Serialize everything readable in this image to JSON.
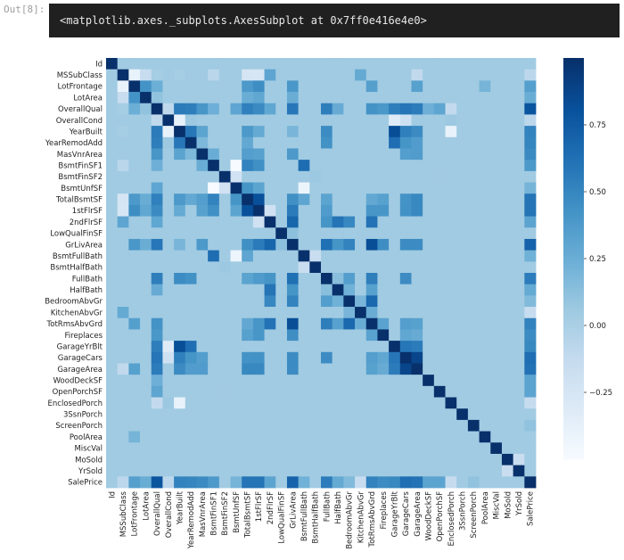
{
  "cell_prompt": "Out[8]:",
  "output_text": "<matplotlib.axes._subplots.AxesSubplot at 0x7ff0e416e4e0>",
  "chart_data": {
    "type": "heatmap",
    "title": "",
    "colormap": "Blues",
    "vmin": -0.5,
    "vmax": 1.0,
    "colorbar_ticks": [
      0.75,
      0.5,
      0.25,
      0.0,
      -0.25
    ],
    "colorbar_tick_labels": [
      "0.75",
      "0.50",
      "0.25",
      "0.00",
      "−0.25"
    ],
    "labels": [
      "Id",
      "MSSubClass",
      "LotFrontage",
      "LotArea",
      "OverallQual",
      "OverallCond",
      "YearBuilt",
      "YearRemodAdd",
      "MasVnrArea",
      "BsmtFinSF1",
      "BsmtFinSF2",
      "BsmtUnfSF",
      "TotalBsmtSF",
      "1stFlrSF",
      "2ndFlrSF",
      "LowQualFinSF",
      "GrLivArea",
      "BsmtFullBath",
      "BsmtHalfBath",
      "FullBath",
      "HalfBath",
      "BedroomAbvGr",
      "KitchenAbvGr",
      "TotRmsAbvGrd",
      "Fireplaces",
      "GarageYrBlt",
      "GarageCars",
      "GarageArea",
      "WoodDeckSF",
      "OpenPorchSF",
      "EnclosedPorch",
      "3SsnPorch",
      "ScreenPorch",
      "PoolArea",
      "MiscVal",
      "MoSold",
      "YrSold",
      "SalePrice"
    ],
    "correlations": [
      [
        "MSSubClass",
        "LotFrontage",
        -0.39
      ],
      [
        "MSSubClass",
        "LotArea",
        -0.14
      ],
      [
        "MSSubClass",
        "OverallQual",
        0.03
      ],
      [
        "MSSubClass",
        "YearBuilt",
        0.03
      ],
      [
        "MSSubClass",
        "BsmtFinSF1",
        -0.07
      ],
      [
        "MSSubClass",
        "TotalBsmtSF",
        -0.24
      ],
      [
        "MSSubClass",
        "1stFlrSF",
        -0.25
      ],
      [
        "MSSubClass",
        "2ndFlrSF",
        0.31
      ],
      [
        "MSSubClass",
        "KitchenAbvGr",
        0.28
      ],
      [
        "MSSubClass",
        "GarageArea",
        -0.1
      ],
      [
        "MSSubClass",
        "SalePrice",
        -0.08
      ],
      [
        "LotFrontage",
        "LotArea",
        0.43
      ],
      [
        "LotFrontage",
        "OverallQual",
        0.25
      ],
      [
        "LotFrontage",
        "TotalBsmtSF",
        0.39
      ],
      [
        "LotFrontage",
        "1stFlrSF",
        0.46
      ],
      [
        "LotFrontage",
        "GrLivArea",
        0.4
      ],
      [
        "LotFrontage",
        "TotRmsAbvGrd",
        0.35
      ],
      [
        "LotFrontage",
        "GarageArea",
        0.34
      ],
      [
        "LotFrontage",
        "PoolArea",
        0.21
      ],
      [
        "LotFrontage",
        "SalePrice",
        0.35
      ],
      [
        "LotArea",
        "OverallQual",
        0.11
      ],
      [
        "LotArea",
        "TotalBsmtSF",
        0.26
      ],
      [
        "LotArea",
        "1stFlrSF",
        0.3
      ],
      [
        "LotArea",
        "GrLivArea",
        0.26
      ],
      [
        "LotArea",
        "SalePrice",
        0.26
      ],
      [
        "OverallQual",
        "OverallCond",
        -0.09
      ],
      [
        "OverallQual",
        "YearBuilt",
        0.57
      ],
      [
        "OverallQual",
        "YearRemodAdd",
        0.55
      ],
      [
        "OverallQual",
        "MasVnrArea",
        0.41
      ],
      [
        "OverallQual",
        "BsmtFinSF1",
        0.24
      ],
      [
        "OverallQual",
        "BsmtUnfSF",
        0.31
      ],
      [
        "OverallQual",
        "TotalBsmtSF",
        0.54
      ],
      [
        "OverallQual",
        "1stFlrSF",
        0.48
      ],
      [
        "OverallQual",
        "2ndFlrSF",
        0.3
      ],
      [
        "OverallQual",
        "GrLivArea",
        0.59
      ],
      [
        "OverallQual",
        "FullBath",
        0.55
      ],
      [
        "OverallQual",
        "HalfBath",
        0.27
      ],
      [
        "OverallQual",
        "TotRmsAbvGrd",
        0.43
      ],
      [
        "OverallQual",
        "Fireplaces",
        0.4
      ],
      [
        "OverallQual",
        "GarageYrBlt",
        0.55
      ],
      [
        "OverallQual",
        "GarageCars",
        0.6
      ],
      [
        "OverallQual",
        "GarageArea",
        0.56
      ],
      [
        "OverallQual",
        "WoodDeckSF",
        0.24
      ],
      [
        "OverallQual",
        "OpenPorchSF",
        0.31
      ],
      [
        "OverallQual",
        "EnclosedPorch",
        -0.11
      ],
      [
        "OverallQual",
        "SalePrice",
        0.79
      ],
      [
        "OverallCond",
        "YearBuilt",
        -0.38
      ],
      [
        "OverallCond",
        "YearRemodAdd",
        0.07
      ],
      [
        "OverallCond",
        "GarageYrBlt",
        -0.32
      ],
      [
        "OverallCond",
        "GarageCars",
        -0.19
      ],
      [
        "OverallCond",
        "EnclosedPorch",
        0.07
      ],
      [
        "OverallCond",
        "SalePrice",
        -0.08
      ],
      [
        "YearBuilt",
        "YearRemodAdd",
        0.59
      ],
      [
        "YearBuilt",
        "MasVnrArea",
        0.32
      ],
      [
        "YearBuilt",
        "TotalBsmtSF",
        0.39
      ],
      [
        "YearBuilt",
        "1stFlrSF",
        0.28
      ],
      [
        "YearBuilt",
        "GrLivArea",
        0.2
      ],
      [
        "YearBuilt",
        "FullBath",
        0.47
      ],
      [
        "YearBuilt",
        "GarageYrBlt",
        0.83
      ],
      [
        "YearBuilt",
        "GarageCars",
        0.54
      ],
      [
        "YearBuilt",
        "GarageArea",
        0.48
      ],
      [
        "YearBuilt",
        "EnclosedPorch",
        -0.39
      ],
      [
        "YearBuilt",
        "SalePrice",
        0.52
      ],
      [
        "YearRemodAdd",
        "MasVnrArea",
        0.18
      ],
      [
        "YearRemodAdd",
        "TotalBsmtSF",
        0.29
      ],
      [
        "YearRemodAdd",
        "FullBath",
        0.44
      ],
      [
        "YearRemodAdd",
        "GarageYrBlt",
        0.64
      ],
      [
        "YearRemodAdd",
        "GarageCars",
        0.42
      ],
      [
        "YearRemodAdd",
        "GarageArea",
        0.37
      ],
      [
        "YearRemodAdd",
        "SalePrice",
        0.51
      ],
      [
        "MasVnrArea",
        "BsmtFinSF1",
        0.26
      ],
      [
        "MasVnrArea",
        "TotalBsmtSF",
        0.36
      ],
      [
        "MasVnrArea",
        "1stFlrSF",
        0.34
      ],
      [
        "MasVnrArea",
        "GrLivArea",
        0.39
      ],
      [
        "MasVnrArea",
        "GarageCars",
        0.36
      ],
      [
        "MasVnrArea",
        "GarageArea",
        0.37
      ],
      [
        "MasVnrArea",
        "SalePrice",
        0.48
      ],
      [
        "BsmtFinSF1",
        "BsmtUnfSF",
        -0.5
      ],
      [
        "BsmtFinSF1",
        "TotalBsmtSF",
        0.52
      ],
      [
        "BsmtFinSF1",
        "1stFlrSF",
        0.45
      ],
      [
        "BsmtFinSF1",
        "BsmtFullBath",
        0.65
      ],
      [
        "BsmtFinSF1",
        "SalePrice",
        0.39
      ],
      [
        "BsmtFinSF2",
        "BsmtUnfSF",
        -0.21
      ],
      [
        "BsmtFinSF2",
        "BsmtHalfBath",
        0.07
      ],
      [
        "BsmtUnfSF",
        "TotalBsmtSF",
        0.42
      ],
      [
        "BsmtUnfSF",
        "1stFlrSF",
        0.32
      ],
      [
        "BsmtUnfSF",
        "BsmtFullBath",
        -0.42
      ],
      [
        "BsmtUnfSF",
        "SalePrice",
        0.21
      ],
      [
        "TotalBsmtSF",
        "1stFlrSF",
        0.82
      ],
      [
        "TotalBsmtSF",
        "GrLivArea",
        0.45
      ],
      [
        "TotalBsmtSF",
        "BsmtFullBath",
        0.31
      ],
      [
        "TotalBsmtSF",
        "FullBath",
        0.32
      ],
      [
        "TotalBsmtSF",
        "TotRmsAbvGrd",
        0.29
      ],
      [
        "TotalBsmtSF",
        "Fireplaces",
        0.34
      ],
      [
        "TotalBsmtSF",
        "GarageCars",
        0.43
      ],
      [
        "TotalBsmtSF",
        "GarageArea",
        0.49
      ],
      [
        "TotalBsmtSF",
        "SalePrice",
        0.61
      ],
      [
        "1stFlrSF",
        "2ndFlrSF",
        -0.2
      ],
      [
        "1stFlrSF",
        "GrLivArea",
        0.57
      ],
      [
        "1stFlrSF",
        "FullBath",
        0.38
      ],
      [
        "1stFlrSF",
        "TotRmsAbvGrd",
        0.41
      ],
      [
        "1stFlrSF",
        "Fireplaces",
        0.41
      ],
      [
        "1stFlrSF",
        "GarageCars",
        0.44
      ],
      [
        "1stFlrSF",
        "GarageArea",
        0.49
      ],
      [
        "1stFlrSF",
        "SalePrice",
        0.61
      ],
      [
        "2ndFlrSF",
        "GrLivArea",
        0.69
      ],
      [
        "2ndFlrSF",
        "FullBath",
        0.42
      ],
      [
        "2ndFlrSF",
        "HalfBath",
        0.61
      ],
      [
        "2ndFlrSF",
        "BedroomAbvGr",
        0.5
      ],
      [
        "2ndFlrSF",
        "TotRmsAbvGrd",
        0.62
      ],
      [
        "2ndFlrSF",
        "SalePrice",
        0.32
      ],
      [
        "LowQualFinSF",
        "GrLivArea",
        0.13
      ],
      [
        "GrLivArea",
        "FullBath",
        0.63
      ],
      [
        "GrLivArea",
        "HalfBath",
        0.42
      ],
      [
        "GrLivArea",
        "BedroomAbvGr",
        0.52
      ],
      [
        "GrLivArea",
        "TotRmsAbvGrd",
        0.83
      ],
      [
        "GrLivArea",
        "Fireplaces",
        0.46
      ],
      [
        "GrLivArea",
        "GarageCars",
        0.47
      ],
      [
        "GrLivArea",
        "GarageArea",
        0.47
      ],
      [
        "GrLivArea",
        "SalePrice",
        0.71
      ],
      [
        "BsmtFullBath",
        "BsmtHalfBath",
        -0.15
      ],
      [
        "BsmtFullBath",
        "SalePrice",
        0.23
      ],
      [
        "FullBath",
        "HalfBath",
        0.14
      ],
      [
        "FullBath",
        "BedroomAbvGr",
        0.36
      ],
      [
        "FullBath",
        "TotRmsAbvGrd",
        0.55
      ],
      [
        "FullBath",
        "GarageCars",
        0.47
      ],
      [
        "FullBath",
        "SalePrice",
        0.56
      ],
      [
        "HalfBath",
        "BedroomAbvGr",
        0.23
      ],
      [
        "HalfBath",
        "TotRmsAbvGrd",
        0.34
      ],
      [
        "HalfBath",
        "SalePrice",
        0.28
      ],
      [
        "BedroomAbvGr",
        "KitchenAbvGr",
        0.2
      ],
      [
        "BedroomAbvGr",
        "TotRmsAbvGrd",
        0.68
      ],
      [
        "BedroomAbvGr",
        "SalePrice",
        0.17
      ],
      [
        "KitchenAbvGr",
        "TotRmsAbvGrd",
        0.26
      ],
      [
        "KitchenAbvGr",
        "SalePrice",
        -0.14
      ],
      [
        "TotRmsAbvGrd",
        "Fireplaces",
        0.33
      ],
      [
        "TotRmsAbvGrd",
        "GarageCars",
        0.36
      ],
      [
        "TotRmsAbvGrd",
        "GarageArea",
        0.34
      ],
      [
        "TotRmsAbvGrd",
        "SalePrice",
        0.53
      ],
      [
        "Fireplaces",
        "GarageCars",
        0.3
      ],
      [
        "Fireplaces",
        "GarageArea",
        0.27
      ],
      [
        "Fireplaces",
        "SalePrice",
        0.47
      ],
      [
        "GarageYrBlt",
        "GarageCars",
        0.59
      ],
      [
        "GarageYrBlt",
        "GarageArea",
        0.56
      ],
      [
        "GarageYrBlt",
        "SalePrice",
        0.49
      ],
      [
        "GarageCars",
        "GarageArea",
        0.88
      ],
      [
        "GarageCars",
        "SalePrice",
        0.64
      ],
      [
        "GarageArea",
        "SalePrice",
        0.62
      ],
      [
        "WoodDeckSF",
        "SalePrice",
        0.32
      ],
      [
        "OpenPorchSF",
        "SalePrice",
        0.32
      ],
      [
        "EnclosedPorch",
        "SalePrice",
        -0.13
      ],
      [
        "ScreenPorch",
        "SalePrice",
        0.11
      ],
      [
        "MoSold",
        "YrSold",
        -0.15
      ]
    ]
  }
}
